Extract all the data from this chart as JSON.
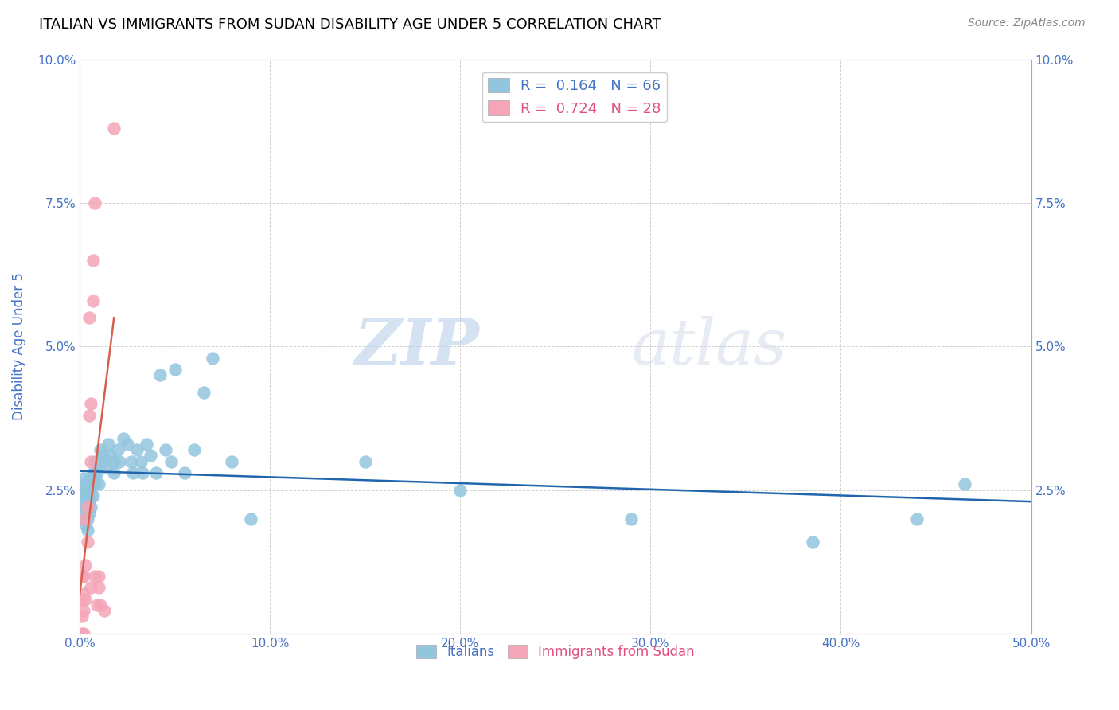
{
  "title": "ITALIAN VS IMMIGRANTS FROM SUDAN DISABILITY AGE UNDER 5 CORRELATION CHART",
  "source": "Source: ZipAtlas.com",
  "ylabel": "Disability Age Under 5",
  "xlim": [
    0.0,
    0.5
  ],
  "ylim": [
    0.0,
    0.1
  ],
  "xticks": [
    0.0,
    0.1,
    0.2,
    0.3,
    0.4,
    0.5
  ],
  "yticks": [
    0.0,
    0.025,
    0.05,
    0.075,
    0.1
  ],
  "ytick_labels": [
    "",
    "2.5%",
    "5.0%",
    "7.5%",
    "10.0%"
  ],
  "xtick_labels": [
    "0.0%",
    "10.0%",
    "20.0%",
    "30.0%",
    "40.0%",
    "50.0%"
  ],
  "blue_color": "#92c5de",
  "pink_color": "#f4a6b8",
  "trendline_blue_color": "#2166ac",
  "trendline_pink_color": "#d6604d",
  "axis_color": "#4472c4",
  "legend_text_blue": "#4472c4",
  "legend_text_pink": "#e05080",
  "legend_label_blue": "R =  0.164   N = 66",
  "legend_label_pink": "R =  0.724   N = 28",
  "watermark_zip": "ZIP",
  "watermark_atlas": "atlas",
  "italians_x": [
    0.001,
    0.001,
    0.002,
    0.002,
    0.002,
    0.003,
    0.003,
    0.003,
    0.003,
    0.004,
    0.004,
    0.004,
    0.004,
    0.004,
    0.005,
    0.005,
    0.005,
    0.005,
    0.006,
    0.006,
    0.006,
    0.007,
    0.007,
    0.007,
    0.008,
    0.008,
    0.008,
    0.009,
    0.009,
    0.01,
    0.011,
    0.012,
    0.013,
    0.014,
    0.015,
    0.016,
    0.018,
    0.018,
    0.02,
    0.021,
    0.023,
    0.025,
    0.027,
    0.028,
    0.03,
    0.032,
    0.033,
    0.035,
    0.037,
    0.04,
    0.042,
    0.045,
    0.048,
    0.05,
    0.055,
    0.06,
    0.065,
    0.07,
    0.08,
    0.09,
    0.15,
    0.2,
    0.29,
    0.385,
    0.44,
    0.465
  ],
  "italians_y": [
    0.025,
    0.022,
    0.027,
    0.024,
    0.02,
    0.026,
    0.024,
    0.022,
    0.019,
    0.026,
    0.024,
    0.022,
    0.02,
    0.018,
    0.027,
    0.025,
    0.023,
    0.021,
    0.026,
    0.024,
    0.022,
    0.028,
    0.026,
    0.024,
    0.03,
    0.028,
    0.026,
    0.03,
    0.028,
    0.026,
    0.032,
    0.031,
    0.03,
    0.029,
    0.033,
    0.031,
    0.03,
    0.028,
    0.032,
    0.03,
    0.034,
    0.033,
    0.03,
    0.028,
    0.032,
    0.03,
    0.028,
    0.033,
    0.031,
    0.028,
    0.045,
    0.032,
    0.03,
    0.046,
    0.028,
    0.032,
    0.042,
    0.048,
    0.03,
    0.02,
    0.03,
    0.025,
    0.02,
    0.016,
    0.02,
    0.026
  ],
  "sudan_x": [
    0.001,
    0.001,
    0.001,
    0.001,
    0.002,
    0.002,
    0.002,
    0.002,
    0.003,
    0.003,
    0.003,
    0.004,
    0.004,
    0.005,
    0.005,
    0.006,
    0.006,
    0.006,
    0.007,
    0.007,
    0.008,
    0.008,
    0.009,
    0.01,
    0.01,
    0.011,
    0.013,
    0.018
  ],
  "sudan_y": [
    0.0,
    0.003,
    0.006,
    0.01,
    0.0,
    0.004,
    0.007,
    0.01,
    0.006,
    0.012,
    0.02,
    0.016,
    0.022,
    0.038,
    0.055,
    0.04,
    0.03,
    0.008,
    0.058,
    0.065,
    0.075,
    0.01,
    0.005,
    0.01,
    0.008,
    0.005,
    0.004,
    0.088
  ]
}
